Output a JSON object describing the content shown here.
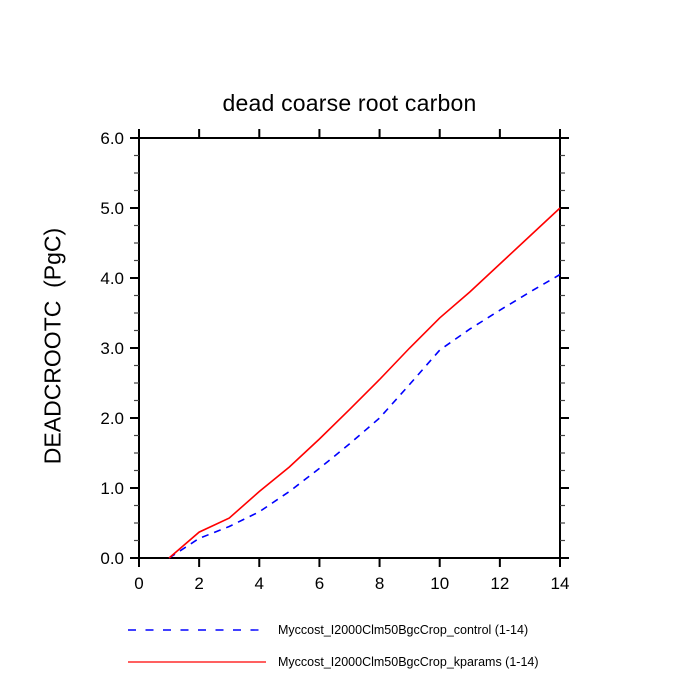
{
  "chart_data": {
    "type": "line",
    "title": "dead coarse root carbon",
    "xlabel": "",
    "ylabel": "DEADCROOTC  (PgC)",
    "xlim": [
      0,
      14
    ],
    "ylim": [
      0,
      6
    ],
    "xticks": [
      0,
      2,
      4,
      6,
      8,
      10,
      12,
      14
    ],
    "xticklabels": [
      "0",
      "2",
      "4",
      "6",
      "8",
      "10",
      "12",
      "14"
    ],
    "yticks": [
      0,
      1,
      2,
      3,
      4,
      5,
      6
    ],
    "yticklabels": [
      "0.0",
      "1.0",
      "2.0",
      "3.0",
      "4.0",
      "5.0",
      "6.0"
    ],
    "y_minor_step": 0.25,
    "grid": "off",
    "legend_position": "bottom",
    "x": [
      1,
      2,
      3,
      4,
      5,
      6,
      7,
      8,
      9,
      10,
      11,
      12,
      13,
      14
    ],
    "series": [
      {
        "name": "Myccost_I2000Clm50BgcCrop_control (1-14)",
        "color": "#0000ff",
        "style": "dashed",
        "values": [
          0.0,
          0.28,
          0.45,
          0.66,
          0.95,
          1.28,
          1.63,
          2.0,
          2.48,
          2.97,
          3.27,
          3.54,
          3.8,
          4.05
        ]
      },
      {
        "name": "Myccost_I2000Clm50BgcCrop_kparams (1-14)",
        "color": "#ff0000",
        "style": "solid",
        "values": [
          0.0,
          0.37,
          0.57,
          0.95,
          1.3,
          1.7,
          2.12,
          2.55,
          3.0,
          3.43,
          3.8,
          4.2,
          4.6,
          5.0
        ]
      }
    ]
  },
  "frame": {
    "axis_color": "#000000",
    "minor_tick_color": "#444444"
  }
}
